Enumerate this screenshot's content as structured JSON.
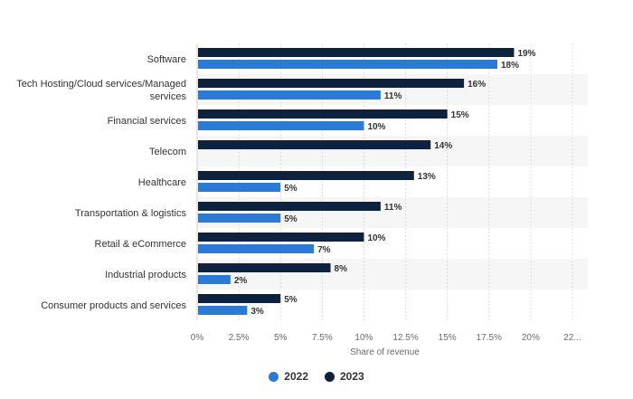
{
  "chart_data": {
    "type": "bar",
    "orientation": "horizontal",
    "categories": [
      "Software",
      [
        "Tech Hosting/Cloud services/Managed",
        "services"
      ],
      "Financial services",
      "Telecom",
      "Healthcare",
      "Transportation & logistics",
      "Retail & eCommerce",
      "Industrial products",
      "Consumer products and services"
    ],
    "series": [
      {
        "name": "2023",
        "color": "#0e2240",
        "values": [
          19,
          16,
          15,
          14,
          13,
          11,
          10,
          8,
          5
        ],
        "labels": [
          "19%",
          "16%",
          "15%",
          "14%",
          "13%",
          "11%",
          "10%",
          "8%",
          "5%"
        ]
      },
      {
        "name": "2022",
        "color": "#2b7bd6",
        "values": [
          18,
          11,
          10,
          null,
          5,
          5,
          7,
          2,
          3
        ],
        "labels": [
          "18%",
          "11%",
          "10%",
          "",
          "5%",
          "5%",
          "7%",
          "2%",
          "3%"
        ]
      }
    ],
    "xlim": [
      0,
      22.5
    ],
    "xticks": [
      0,
      2.5,
      5,
      7.5,
      10,
      12.5,
      15,
      17.5,
      20,
      22.5
    ],
    "xtick_labels": [
      "0%",
      "2.5%",
      "5%",
      "7.5%",
      "10%",
      "12.5%",
      "15%",
      "17.5%",
      "20%",
      "22..."
    ],
    "xlabel": "Share of revenue",
    "grid": true,
    "legend_position": "bottom-center",
    "legend": [
      {
        "label": "2022",
        "color": "#2b7bd6"
      },
      {
        "label": "2023",
        "color": "#0e2240"
      }
    ]
  }
}
